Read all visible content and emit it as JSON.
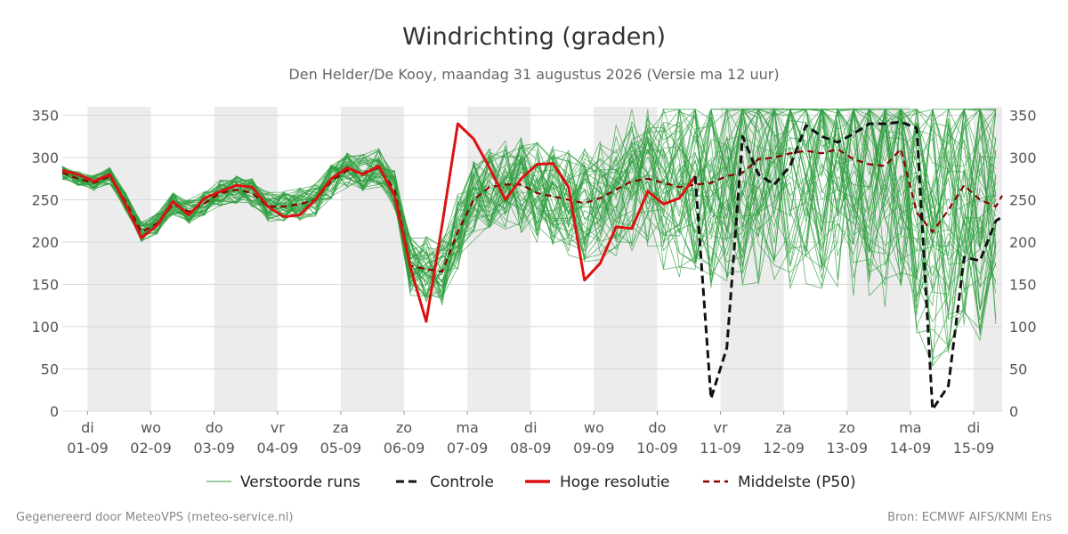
{
  "chart_data": {
    "type": "line",
    "title": "Windrichting (graden)",
    "subtitle": "Den Helder/De Kooy, maandag 31 augustus 2026 (Versie ma 12 uur)",
    "y_ticks": [
      0,
      50,
      100,
      150,
      200,
      250,
      300,
      350
    ],
    "ylim": [
      0,
      360
    ],
    "xlim_days": [
      0.6,
      15.45
    ],
    "x_ticks": [
      {
        "day_label": "di",
        "date_label": "01-09"
      },
      {
        "day_label": "wo",
        "date_label": "02-09"
      },
      {
        "day_label": "do",
        "date_label": "03-09"
      },
      {
        "day_label": "vr",
        "date_label": "04-09"
      },
      {
        "day_label": "za",
        "date_label": "05-09"
      },
      {
        "day_label": "zo",
        "date_label": "06-09"
      },
      {
        "day_label": "ma",
        "date_label": "07-09"
      },
      {
        "day_label": "di",
        "date_label": "08-09"
      },
      {
        "day_label": "wo",
        "date_label": "09-09"
      },
      {
        "day_label": "do",
        "date_label": "10-09"
      },
      {
        "day_label": "vr",
        "date_label": "11-09"
      },
      {
        "day_label": "za",
        "date_label": "12-09"
      },
      {
        "day_label": "zo",
        "date_label": "13-09"
      },
      {
        "day_label": "ma",
        "date_label": "14-09"
      },
      {
        "day_label": "di",
        "date_label": "15-09"
      }
    ],
    "grid": true,
    "legend_position": "bottom",
    "series": [
      {
        "name": "Hoge resolutie",
        "color": "#dd1111",
        "style": "solid",
        "x": [
          0.6,
          0.85,
          1.1,
          1.35,
          1.6,
          1.85,
          2.1,
          2.35,
          2.6,
          2.85,
          3.1,
          3.35,
          3.6,
          3.85,
          4.1,
          4.35,
          4.6,
          4.85,
          5.1,
          5.35,
          5.6,
          5.85,
          6.1,
          6.35,
          6.6,
          6.85,
          7.1,
          7.35,
          7.6,
          7.85,
          8.1,
          8.35,
          8.6,
          8.85,
          9.1,
          9.35,
          9.6,
          9.85,
          10.1,
          10.35,
          10.6
        ],
        "values": [
          285,
          280,
          272,
          280,
          245,
          205,
          220,
          248,
          232,
          252,
          260,
          267,
          265,
          242,
          230,
          232,
          250,
          275,
          288,
          280,
          290,
          255,
          170,
          106,
          220,
          340,
          322,
          288,
          250,
          275,
          292,
          293,
          265,
          155,
          175,
          218,
          216,
          260,
          245,
          252,
          278
        ]
      },
      {
        "name": "Controle",
        "color": "#111111",
        "style": "dashed",
        "x": [
          10.6,
          10.85,
          11.1,
          11.35,
          11.6,
          11.85,
          12.1,
          12.35,
          12.6,
          12.85,
          13.1,
          13.35,
          13.6,
          13.85,
          14.1,
          14.35,
          14.6,
          14.85,
          15.1,
          15.35,
          15.45
        ],
        "values": [
          278,
          15,
          75,
          325,
          280,
          268,
          290,
          338,
          325,
          318,
          328,
          340,
          340,
          342,
          335,
          2,
          30,
          182,
          178,
          225,
          230
        ]
      },
      {
        "name": "Middelste (P50)",
        "color": "#8b0000",
        "style": "dashed",
        "x": [
          0.6,
          0.85,
          1.1,
          1.35,
          1.6,
          1.85,
          2.1,
          2.35,
          2.6,
          2.85,
          3.1,
          3.35,
          3.6,
          3.85,
          4.1,
          4.35,
          4.6,
          4.85,
          5.1,
          5.35,
          5.6,
          5.85,
          6.1,
          6.35,
          6.6,
          6.85,
          7.1,
          7.35,
          7.6,
          7.85,
          8.1,
          8.35,
          8.6,
          8.85,
          9.1,
          9.35,
          9.6,
          9.85,
          10.1,
          10.35,
          10.6,
          10.85,
          11.1,
          11.35,
          11.6,
          11.85,
          12.1,
          12.35,
          12.6,
          12.85,
          13.1,
          13.35,
          13.6,
          13.85,
          14.1,
          14.35,
          14.6,
          14.85,
          15.1,
          15.35,
          15.45
        ],
        "values": [
          282,
          275,
          270,
          278,
          248,
          212,
          222,
          245,
          236,
          246,
          258,
          262,
          258,
          242,
          242,
          245,
          250,
          272,
          285,
          282,
          288,
          262,
          172,
          168,
          165,
          212,
          250,
          265,
          268,
          268,
          258,
          254,
          250,
          246,
          252,
          262,
          272,
          275,
          270,
          265,
          268,
          270,
          278,
          282,
          298,
          300,
          305,
          308,
          305,
          310,
          298,
          292,
          290,
          310,
          235,
          212,
          238,
          267,
          250,
          242,
          255
        ]
      },
      {
        "name": "Verstoorde runs",
        "color": "#2e9e3e",
        "style": "thin",
        "description_of_envelope": "50 members clustered around the median until 06-09, then spreading across 0-360",
        "count": 50
      }
    ]
  },
  "legend": {
    "perturbed": "Verstoorde runs",
    "control": "Controle",
    "hires": "Hoge resolutie",
    "median": "Middelste (P50)"
  },
  "footer": {
    "left": "Gegenereerd door MeteoVPS (meteo-service.nl)",
    "right": "Bron: ECMWF AIFS/KNMI Ens"
  },
  "colors": {
    "weekend_band": "#ececec",
    "grid": "#d8d8d8",
    "ensemble": "#2e9e3e"
  }
}
